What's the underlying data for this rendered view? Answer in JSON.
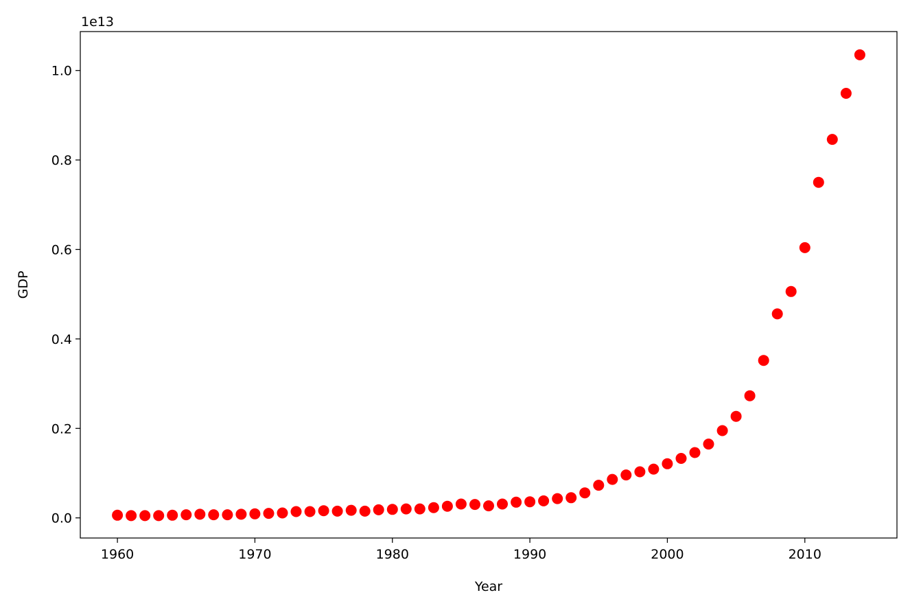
{
  "chart_data": {
    "type": "scatter",
    "xlabel": "Year",
    "ylabel": "GDP",
    "y_offset_label": "1e13",
    "y_scale_factor": 10000000000000.0,
    "xlim": [
      1957.3,
      2016.7
    ],
    "ylim": [
      -0.045,
      1.087
    ],
    "xticks": [
      1960,
      1970,
      1980,
      1990,
      2000,
      2010
    ],
    "xtick_labels": [
      "1960",
      "1970",
      "1980",
      "1990",
      "2000",
      "2010"
    ],
    "yticks": [
      0.0,
      0.2,
      0.4,
      0.6,
      0.8,
      1.0
    ],
    "ytick_labels": [
      "0.0",
      "0.2",
      "0.4",
      "0.6",
      "0.8",
      "1.0"
    ],
    "grid": false,
    "marker_color": "#ff0000",
    "x": [
      1960,
      1961,
      1962,
      1963,
      1964,
      1965,
      1966,
      1967,
      1968,
      1969,
      1970,
      1971,
      1972,
      1973,
      1974,
      1975,
      1976,
      1977,
      1978,
      1979,
      1980,
      1981,
      1982,
      1983,
      1984,
      1985,
      1986,
      1987,
      1988,
      1989,
      1990,
      1991,
      1992,
      1993,
      1994,
      1995,
      1996,
      1997,
      1998,
      1999,
      2000,
      2001,
      2002,
      2003,
      2004,
      2005,
      2006,
      2007,
      2008,
      2009,
      2010,
      2011,
      2012,
      2013,
      2014
    ],
    "y": [
      0.006,
      0.005,
      0.005,
      0.005,
      0.006,
      0.007,
      0.008,
      0.007,
      0.007,
      0.008,
      0.009,
      0.01,
      0.011,
      0.014,
      0.014,
      0.016,
      0.015,
      0.017,
      0.015,
      0.018,
      0.019,
      0.02,
      0.02,
      0.023,
      0.026,
      0.031,
      0.03,
      0.027,
      0.031,
      0.035,
      0.036,
      0.038,
      0.043,
      0.045,
      0.056,
      0.073,
      0.086,
      0.096,
      0.103,
      0.109,
      0.121,
      0.133,
      0.146,
      0.165,
      0.195,
      0.227,
      0.273,
      0.352,
      0.456,
      0.506,
      0.604,
      0.75,
      0.846,
      0.949,
      1.035
    ]
  }
}
